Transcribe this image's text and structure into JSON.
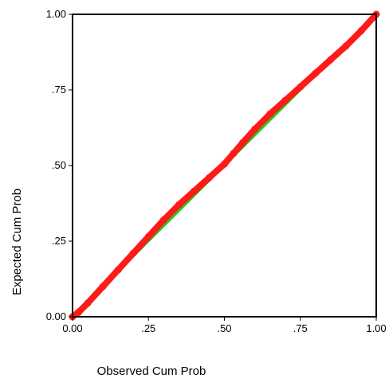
{
  "chart_data": {
    "type": "line",
    "title": "",
    "xlabel": "Observed Cum Prob",
    "ylabel": "Expected Cum Prob",
    "xlim": [
      0,
      1
    ],
    "ylim": [
      0,
      1
    ],
    "xticks": [
      0,
      0.25,
      0.5,
      0.75,
      1
    ],
    "yticks": [
      0,
      0.25,
      0.5,
      0.75,
      1
    ],
    "xtick_labels": [
      "0.00",
      ".25",
      ".50",
      ".75",
      "1.00"
    ],
    "ytick_labels": [
      "0.00",
      ".25",
      ".50",
      ".75",
      "1.00"
    ],
    "grid": false,
    "legend": "none",
    "series": [
      {
        "role": "reference-line",
        "color": "#22cc22",
        "x": [
          0,
          1
        ],
        "y": [
          0,
          1
        ]
      },
      {
        "role": "observed-points",
        "color": "#ff1a1a",
        "x": [
          0.0,
          0.02,
          0.05,
          0.1,
          0.15,
          0.2,
          0.25,
          0.3,
          0.35,
          0.4,
          0.45,
          0.5,
          0.53,
          0.56,
          0.6,
          0.65,
          0.7,
          0.75,
          0.8,
          0.85,
          0.9,
          0.95,
          1.0
        ],
        "y": [
          0.0,
          0.015,
          0.045,
          0.1,
          0.155,
          0.21,
          0.265,
          0.32,
          0.37,
          0.415,
          0.46,
          0.505,
          0.54,
          0.575,
          0.62,
          0.67,
          0.715,
          0.76,
          0.805,
          0.85,
          0.895,
          0.945,
          1.0
        ]
      }
    ]
  }
}
